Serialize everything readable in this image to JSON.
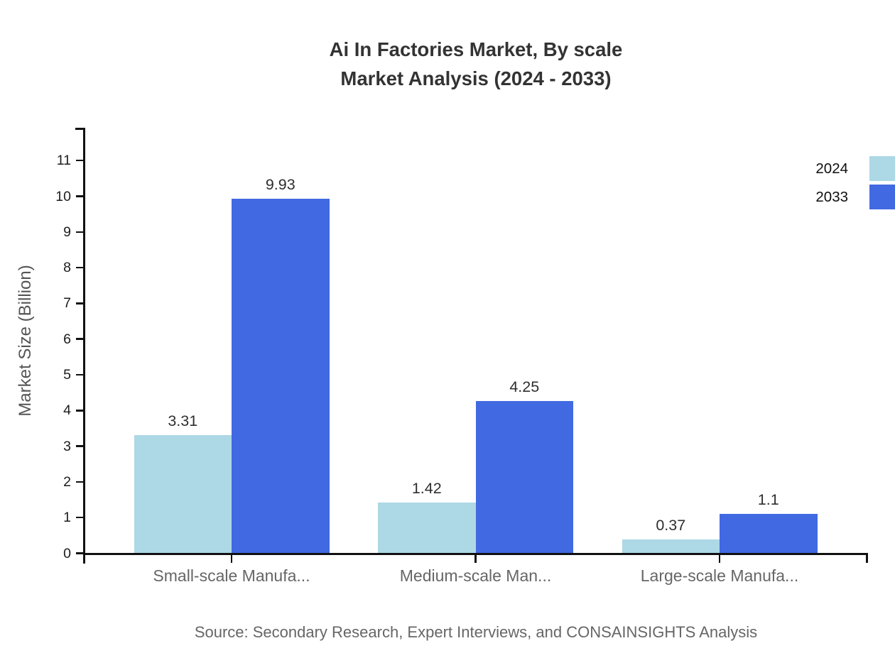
{
  "title": {
    "line1": "Ai In Factories Market, By scale",
    "line2": "Market Analysis (2024 - 2033)"
  },
  "source": "Source: Secondary Research, Expert Interviews, and CONSAINSIGHTS Analysis",
  "colors": {
    "series_2024": "#ADD8E6",
    "series_2033": "#4169E1",
    "axis": "#111111",
    "title_text": "#333333",
    "category_text": "#666666",
    "source_text": "#666666"
  },
  "legend": {
    "items": [
      {
        "label": "2024",
        "color": "#ADD8E6"
      },
      {
        "label": "2033",
        "color": "#4169E1"
      }
    ]
  },
  "chart_data": {
    "type": "bar",
    "categories": [
      "Small-scale Manufa...",
      "Medium-scale Man...",
      "Large-scale Manufa..."
    ],
    "series": [
      {
        "name": "2024",
        "color": "#ADD8E6",
        "values": [
          3.31,
          1.42,
          0.37
        ]
      },
      {
        "name": "2033",
        "color": "#4169E1",
        "values": [
          9.93,
          4.25,
          1.1
        ]
      }
    ],
    "title": "Ai In Factories Market, By scale Market Analysis (2024 - 2033)",
    "xlabel": "",
    "ylabel": "Market Size (Billion)",
    "ylim": [
      0,
      11
    ],
    "yticks": [
      0,
      1,
      2,
      3,
      4,
      5,
      6,
      7,
      8,
      9,
      10,
      11
    ],
    "grid": false,
    "legend_position": "top-right",
    "value_labels": true
  }
}
